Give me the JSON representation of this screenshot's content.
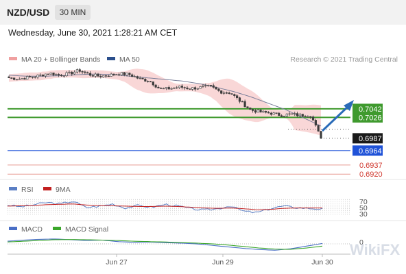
{
  "header": {
    "symbol": "NZD/USD",
    "timeframe": "30 MIN"
  },
  "datetime": "Wednesday, June 30, 2021 1:28:21 AM CET",
  "copyright": "Research © 2021 Trading Central",
  "watermark": "WikiFX",
  "colors": {
    "bollinger": "#f4b6b6",
    "ma50": "#2b4f8c",
    "resistance": "#3f9a2e",
    "support": "#1f52d8",
    "support_line_red": "#d13b32",
    "arrow": "#2a6bb8",
    "rsi": "#5b7fc4",
    "rsi_ma": "#c21f1f",
    "macd": "#4a6fc6",
    "macd_signal": "#3aa62a"
  },
  "chart_data": [
    {
      "type": "candlestick",
      "pane": "price",
      "legend": [
        {
          "label": "MA 20 + Bollinger Bands",
          "color": "#f0a0a0"
        },
        {
          "label": "MA 50",
          "color": "#2b4f8c"
        }
      ],
      "x_tick_labels": [
        "Jun 27",
        "Jun 29",
        "Jun 30"
      ],
      "ylim": [
        0.691,
        0.712
      ],
      "price_path": [
        0.71,
        0.7098,
        0.7101,
        0.7104,
        0.7109,
        0.7105,
        0.7108,
        0.7114,
        0.7106,
        0.7103,
        0.7105,
        0.7108,
        0.7106,
        0.7098,
        0.7094,
        0.7079,
        0.708,
        0.7083,
        0.708,
        0.7082,
        0.7084,
        0.7074,
        0.7072,
        0.7056,
        0.704,
        0.7036,
        0.7034,
        0.703,
        0.7032,
        0.703,
        0.703,
        0.6987
      ],
      "ma50_path": [
        0.7105,
        0.7103,
        0.7103,
        0.7104,
        0.7106,
        0.7107,
        0.7106,
        0.7103,
        0.71,
        0.7097,
        0.7094,
        0.7089,
        0.7082,
        0.7074,
        0.7064,
        0.7052,
        0.704,
        0.7025,
        0.701
      ],
      "levels": [
        {
          "value": 0.7042,
          "label": "0.7042",
          "kind": "resistance"
        },
        {
          "value": 0.7026,
          "label": "0.7026",
          "kind": "resistance"
        },
        {
          "value": 0.6987,
          "label": "0.6987",
          "kind": "last"
        },
        {
          "value": 0.6964,
          "label": "0.6964",
          "kind": "support"
        },
        {
          "value": 0.6937,
          "label": "0.6937",
          "kind": "support_minor"
        },
        {
          "value": 0.692,
          "label": "0.6920",
          "kind": "support_minor"
        }
      ]
    },
    {
      "type": "line",
      "pane": "rsi",
      "legend": [
        {
          "label": "RSI",
          "color": "#5b7fc4"
        },
        {
          "label": "9MA",
          "color": "#c21f1f"
        }
      ],
      "y_tick_labels": [
        "70",
        "50",
        "30"
      ],
      "ylim": [
        20,
        80
      ],
      "series": [
        {
          "name": "RSI",
          "values": [
            55,
            50,
            56,
            62,
            58,
            66,
            48,
            52,
            58,
            47,
            54,
            49,
            57,
            52,
            45,
            41,
            45,
            53,
            38,
            34,
            45,
            52,
            48,
            46,
            44
          ]
        },
        {
          "name": "9MA",
          "values": [
            52,
            53,
            54,
            56,
            57,
            58,
            55,
            54,
            53,
            52,
            51,
            51,
            52,
            51,
            49,
            47,
            46,
            47,
            45,
            42,
            43,
            46,
            47,
            47,
            47
          ]
        }
      ]
    },
    {
      "type": "line",
      "pane": "macd",
      "legend": [
        {
          "label": "MACD",
          "color": "#4a6fc6"
        },
        {
          "label": "MACD Signal",
          "color": "#3aa62a"
        }
      ],
      "y_tick_labels": [
        "0"
      ],
      "series": [
        {
          "name": "MACD",
          "values": [
            0.7,
            1.0,
            1.2,
            1.3,
            1.1,
            0.9,
            1.0,
            0.6,
            0.4,
            0.5,
            0.3,
            0.2,
            0.0,
            -0.4,
            -0.8,
            -1.2,
            -1.5,
            -1.7,
            -1.3,
            -0.6,
            0.1
          ]
        },
        {
          "name": "MACD Signal",
          "values": [
            0.5,
            0.7,
            0.9,
            1.1,
            1.15,
            1.1,
            1.0,
            0.9,
            0.7,
            0.6,
            0.5,
            0.35,
            0.2,
            0.0,
            -0.3,
            -0.7,
            -1.1,
            -1.4,
            -1.45,
            -1.1,
            -0.6
          ]
        }
      ]
    }
  ]
}
